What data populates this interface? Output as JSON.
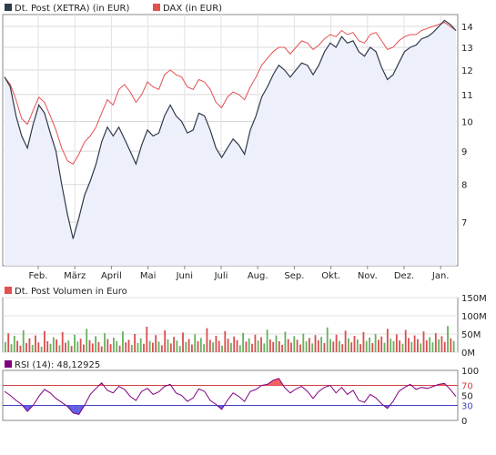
{
  "chart_data": [
    {
      "type": "line",
      "legend": [
        {
          "label": "Dt. Post (XETRA) (in EUR)",
          "color": "#2f3a4a"
        },
        {
          "label": "DAX (in EUR)",
          "color": "#e35050"
        }
      ],
      "x_tick_labels": [
        "Feb.",
        "März",
        "April",
        "Mai",
        "Juni",
        "Juli",
        "Aug.",
        "Sep.",
        "Okt.",
        "Nov.",
        "Dez.",
        "Jan."
      ],
      "y_tick_labels": [
        "7",
        "8",
        "9",
        "10",
        "11",
        "12",
        "13",
        "14"
      ],
      "ylim": [
        6.0,
        14.6
      ],
      "y_scale": "log",
      "series": [
        {
          "name": "Dt. Post (XETRA) (in EUR)",
          "color": "#2f3a4a",
          "fill": "#edf0fa",
          "values": [
            11.7,
            11.3,
            10.2,
            9.5,
            9.1,
            9.9,
            10.6,
            10.3,
            9.6,
            9.0,
            8.0,
            7.2,
            6.6,
            7.1,
            7.7,
            8.1,
            8.6,
            9.3,
            9.8,
            9.5,
            9.8,
            9.4,
            9.0,
            8.6,
            9.2,
            9.7,
            9.5,
            9.6,
            10.2,
            10.6,
            10.2,
            10.0,
            9.6,
            9.7,
            10.3,
            10.2,
            9.7,
            9.1,
            8.8,
            9.1,
            9.4,
            9.2,
            8.9,
            9.7,
            10.2,
            10.9,
            11.3,
            11.8,
            12.2,
            12.0,
            11.7,
            12.0,
            12.3,
            12.2,
            11.8,
            12.2,
            12.8,
            13.2,
            13.0,
            13.5,
            13.2,
            13.3,
            12.8,
            12.6,
            13.0,
            12.8,
            12.1,
            11.6,
            11.8,
            12.3,
            12.8,
            13.0,
            13.1,
            13.4,
            13.5,
            13.7,
            14.0,
            14.3,
            14.1,
            13.8
          ]
        },
        {
          "name": "DAX (in EUR)",
          "color": "#e35050",
          "values": [
            11.7,
            11.4,
            10.8,
            10.1,
            9.9,
            10.4,
            10.9,
            10.7,
            10.2,
            9.7,
            9.1,
            8.7,
            8.6,
            8.9,
            9.3,
            9.5,
            9.8,
            10.3,
            10.8,
            10.6,
            11.2,
            11.4,
            11.1,
            10.7,
            11.0,
            11.5,
            11.3,
            11.2,
            11.8,
            12.0,
            11.8,
            11.7,
            11.3,
            11.2,
            11.6,
            11.5,
            11.2,
            10.7,
            10.5,
            10.9,
            11.1,
            11.0,
            10.8,
            11.3,
            11.7,
            12.2,
            12.5,
            12.8,
            13.0,
            13.0,
            12.7,
            13.0,
            13.3,
            13.2,
            12.9,
            13.1,
            13.4,
            13.6,
            13.5,
            13.8,
            13.6,
            13.7,
            13.3,
            13.2,
            13.6,
            13.7,
            13.3,
            12.9,
            13.0,
            13.3,
            13.5,
            13.6,
            13.6,
            13.8,
            13.9,
            14.0,
            14.1,
            14.2,
            14.0,
            13.8
          ]
        }
      ]
    },
    {
      "type": "bar",
      "legend": [
        {
          "label": "Dt. Post Volumen in Euro",
          "color": "#e35050"
        }
      ],
      "y_tick_labels": [
        "0M",
        "50M",
        "100M",
        "150M"
      ],
      "ylim": [
        0,
        150
      ],
      "unit": "M EUR",
      "series": [
        {
          "name": "Dt. Post Volumen in Euro",
          "up_color": "#68b060",
          "down_color": "#d85050",
          "values": [
            28,
            52,
            22,
            45,
            31,
            18,
            60,
            25,
            38,
            20,
            46,
            27,
            15,
            58,
            30,
            23,
            41,
            35,
            19,
            55,
            26,
            32,
            17,
            48,
            29,
            37,
            21,
            64,
            33,
            24,
            44,
            28,
            16,
            52,
            36,
            22,
            40,
            30,
            18,
            57,
            27,
            34,
            20,
            50,
            25,
            38,
            23,
            70,
            31,
            26,
            47,
            29,
            19,
            60,
            35,
            24,
            42,
            32,
            17,
            54,
            28,
            36,
            21,
            49,
            30,
            39,
            22,
            66,
            34,
            27,
            45,
            31,
            18,
            58,
            37,
            25,
            43,
            33,
            19,
            53,
            29,
            38,
            23,
            48,
            32,
            41,
            24,
            62,
            35,
            28,
            46,
            30,
            20,
            56,
            36,
            26,
            44,
            34,
            21,
            51,
            30,
            39,
            24,
            47,
            33,
            42,
            25,
            68,
            36,
            29,
            48,
            31,
            22,
            59,
            38,
            27,
            45,
            35,
            22,
            55,
            31,
            40,
            25,
            50,
            34,
            43,
            26,
            64,
            37,
            30,
            49,
            32,
            23,
            61,
            39,
            28,
            46,
            36,
            24,
            57,
            33,
            41,
            27,
            52,
            35,
            44,
            28,
            72,
            38,
            31
          ]
        }
      ]
    },
    {
      "type": "line",
      "legend": [
        {
          "label": "RSI (14): 48,12925",
          "color": "#800080"
        }
      ],
      "y_tick_labels": [
        "0",
        "30",
        "50",
        "70",
        "100"
      ],
      "ylim": [
        0,
        100
      ],
      "reference_lines": [
        70,
        30
      ],
      "series": [
        {
          "name": "RSI (14): 48,12925",
          "color": "#800080",
          "overbought_fill": "#f06060",
          "oversold_fill": "#6060e0",
          "values": [
            58,
            50,
            40,
            32,
            18,
            30,
            48,
            62,
            55,
            44,
            36,
            28,
            15,
            12,
            30,
            52,
            64,
            75,
            60,
            55,
            68,
            62,
            48,
            40,
            58,
            64,
            52,
            57,
            68,
            72,
            55,
            50,
            38,
            45,
            63,
            58,
            40,
            32,
            22,
            40,
            55,
            48,
            38,
            58,
            62,
            70,
            72,
            80,
            84,
            66,
            55,
            63,
            68,
            58,
            44,
            58,
            66,
            70,
            55,
            66,
            52,
            60,
            40,
            36,
            52,
            45,
            33,
            24,
            38,
            58,
            66,
            72,
            62,
            66,
            64,
            68,
            72,
            74,
            62,
            48
          ]
        }
      ]
    }
  ]
}
